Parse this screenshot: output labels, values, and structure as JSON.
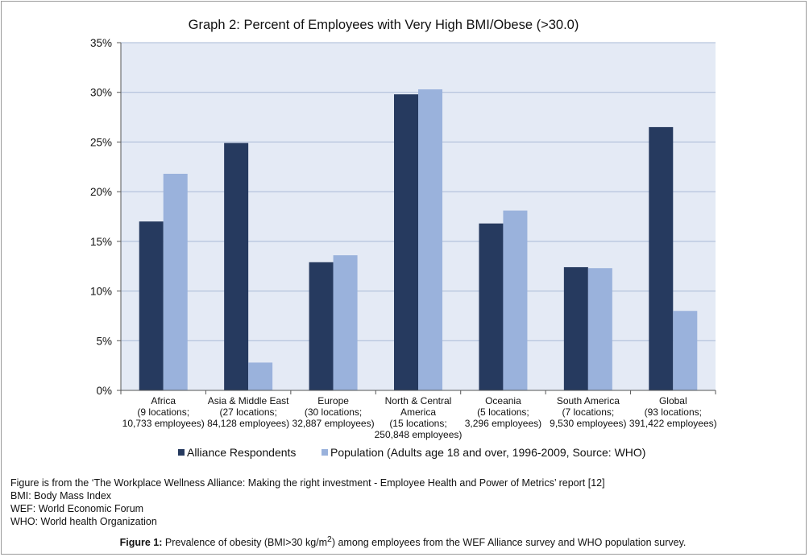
{
  "chart_data": {
    "type": "bar",
    "title": "Graph 2: Percent of Employees with Very High BMI/Obese (>30.0)",
    "categories": [
      [
        "Africa",
        "(9 locations;",
        "10,733 employees)"
      ],
      [
        "Asia & Middle East",
        "(27 locations;",
        "84,128 employees)"
      ],
      [
        "Europe",
        "(30 locations;",
        "32,887 employees)"
      ],
      [
        "North & Central",
        "America",
        "(15 locations;",
        "250,848 employees)"
      ],
      [
        "Oceania",
        "(5 locations;",
        "3,296 employees)"
      ],
      [
        "South America",
        "(7 locations;",
        "9,530 employees)"
      ],
      [
        "Global",
        "(93 locations;",
        "391,422 employees)"
      ]
    ],
    "series": [
      {
        "name": "Alliance Respondents",
        "color": "#263a5f",
        "values": [
          17.0,
          24.9,
          12.9,
          29.8,
          16.8,
          12.4,
          26.5
        ]
      },
      {
        "name": "Population (Adults age 18 and over, 1996-2009, Source: WHO)",
        "color": "#9ab2dc",
        "values": [
          21.8,
          2.8,
          13.6,
          30.3,
          18.1,
          12.3,
          8.0
        ]
      }
    ],
    "yticks": [
      "0%",
      "5%",
      "10%",
      "15%",
      "20%",
      "25%",
      "30%",
      "35%"
    ],
    "ylim": [
      0,
      35
    ],
    "grid": true,
    "legend": "bottom",
    "plot_background": "#e4eaf5"
  },
  "notes": [
    "Figure is from the ‘The Workplace Wellness Alliance: Making the right investment - Employee Health and Power of Metrics’ report [12]",
    "BMI: Body Mass Index",
    "WEF: World Economic Forum",
    "WHO: World health Organization"
  ],
  "caption": {
    "label": "Figure 1:",
    "text_before": " Prevalence of obesity (BMI>30 kg/m",
    "superscript": "2",
    "text_after": ") among employees from the WEF Alliance survey and WHO population survey."
  }
}
